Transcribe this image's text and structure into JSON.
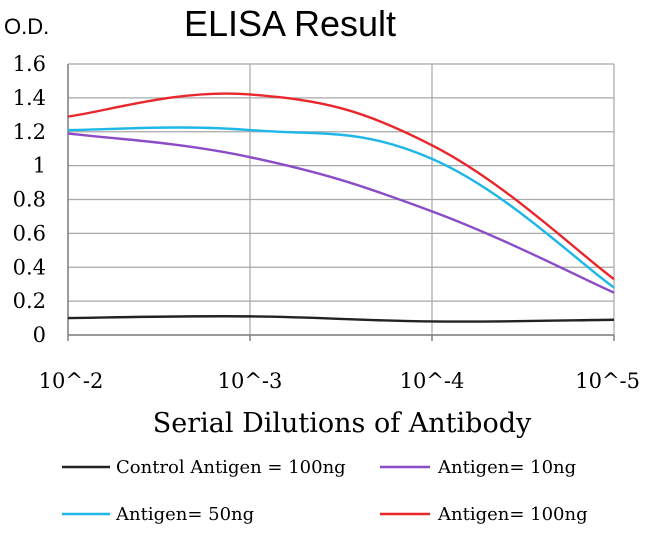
{
  "chart_data": {
    "type": "line",
    "title": "ELISA Result",
    "ylabel": "O.D.",
    "xlabel": "Serial Dilutions of Antibody",
    "x_tick_labels": [
      "10^-2",
      "10^-3",
      "10^-4",
      "10^-5"
    ],
    "y_tick_labels": [
      "0",
      "0.2",
      "0.4",
      "0.6",
      "0.8",
      "1",
      "1.2",
      "1.4",
      "1.6"
    ],
    "ylim": [
      0,
      1.6
    ],
    "grid": true,
    "legend_position": "bottom",
    "series": [
      {
        "name": "Control Antigen = 100ng",
        "color": "#222222",
        "values": [
          0.1,
          0.11,
          0.08,
          0.09
        ]
      },
      {
        "name": "Antigen= 10ng",
        "color": "#8a4cc7",
        "values": [
          1.19,
          1.05,
          0.73,
          0.25
        ]
      },
      {
        "name": "Antigen= 50ng",
        "color": "#1fb7e8",
        "values": [
          1.21,
          1.21,
          1.04,
          0.28
        ]
      },
      {
        "name": "Antigen= 100ng",
        "color": "#e8262b",
        "values": [
          1.29,
          1.42,
          1.12,
          0.33
        ]
      }
    ]
  }
}
